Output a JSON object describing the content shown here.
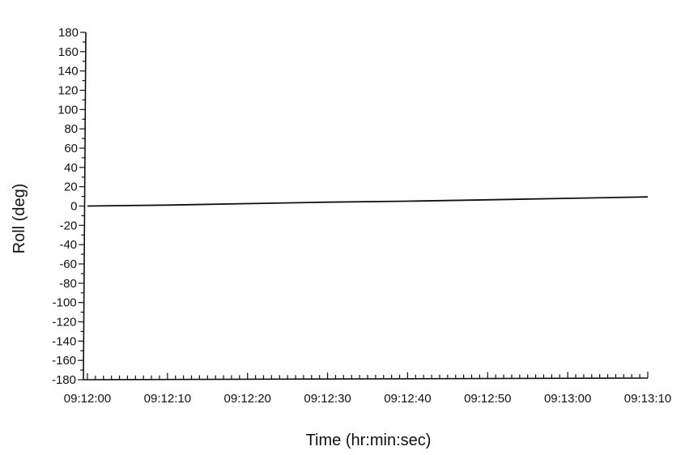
{
  "chart_data": {
    "type": "line",
    "title": "",
    "xlabel": "Time (hr:min:sec)",
    "ylabel": "Roll (deg)",
    "ylim": [
      -180,
      180
    ],
    "y_ticks": [
      -180,
      -160,
      -140,
      -120,
      -100,
      -80,
      -60,
      -40,
      -20,
      0,
      20,
      40,
      60,
      80,
      100,
      120,
      140,
      160,
      180
    ],
    "x_ticks": [
      "09:12:00",
      "09:12:10",
      "09:12:20",
      "09:12:30",
      "09:12:40",
      "09:12:50",
      "09:13:00",
      "09:13:10"
    ],
    "xlim": [
      "09:12:00",
      "09:13:10"
    ],
    "x_minor_tick_interval_sec": 1,
    "grid": false,
    "series": [
      {
        "x": [
          "09:12:00",
          "09:12:10",
          "09:12:20",
          "09:12:30",
          "09:12:40",
          "09:12:50",
          "09:13:00",
          "09:13:10"
        ],
        "values": [
          0,
          1,
          2.5,
          4,
          5,
          6.5,
          8,
          9.5
        ],
        "color": "#111111"
      }
    ]
  }
}
